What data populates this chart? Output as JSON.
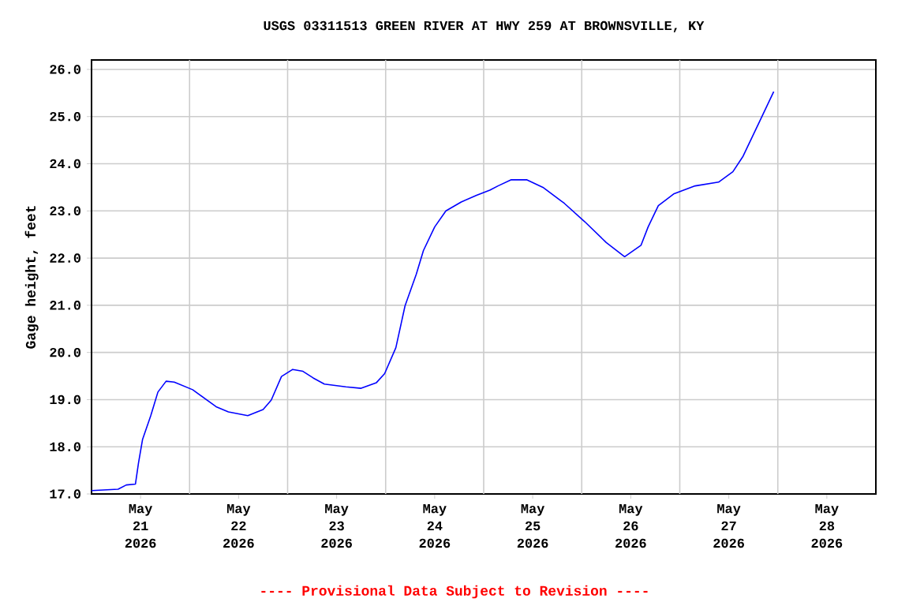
{
  "chart_data": {
    "type": "line",
    "title": "USGS 03311513 GREEN RIVER AT HWY 259 AT BROWNSVILLE, KY",
    "ylabel": "Gage height, feet",
    "annotations": [
      "---- Provisional Data Subject to Revision ----"
    ],
    "x": [
      "2026-05-21T00:00",
      "2026-05-21T06:30",
      "2026-05-21T08:30",
      "2026-05-21T10:45",
      "2026-05-21T11:30",
      "2026-05-21T12:30",
      "2026-05-21T14:30",
      "2026-05-21T16:15",
      "2026-05-21T18:15",
      "2026-05-21T20:15",
      "2026-05-22T00:45",
      "2026-05-22T06:30",
      "2026-05-22T09:30",
      "2026-05-22T14:15",
      "2026-05-22T18:00",
      "2026-05-22T20:00",
      "2026-05-22T22:30",
      "2026-05-23T01:15",
      "2026-05-23T03:45",
      "2026-05-23T06:15",
      "2026-05-23T09:00",
      "2026-05-23T14:15",
      "2026-05-23T18:00",
      "2026-05-23T21:45",
      "2026-05-23T23:45",
      "2026-05-24T02:30",
      "2026-05-24T04:45",
      "2026-05-24T07:30",
      "2026-05-24T09:15",
      "2026-05-24T12:00",
      "2026-05-24T14:45",
      "2026-05-24T18:30",
      "2026-05-24T22:15",
      "2026-05-25T01:30",
      "2026-05-25T03:30",
      "2026-05-25T06:45",
      "2026-05-25T10:30",
      "2026-05-25T14:30",
      "2026-05-25T19:45",
      "2026-05-26T00:45",
      "2026-05-26T06:00",
      "2026-05-26T10:30",
      "2026-05-26T14:30",
      "2026-05-26T16:15",
      "2026-05-26T18:45",
      "2026-05-26T22:30",
      "2026-05-27T03:45",
      "2026-05-27T09:30",
      "2026-05-27T13:00",
      "2026-05-27T15:30",
      "2026-05-27T19:30",
      "2026-05-27T23:00"
    ],
    "series": [
      {
        "color": "#0000ff",
        "values": [
          17.07,
          17.1,
          17.19,
          17.21,
          17.66,
          18.16,
          18.66,
          19.16,
          19.39,
          19.37,
          19.21,
          18.85,
          18.74,
          18.66,
          18.79,
          18.99,
          19.49,
          19.64,
          19.6,
          19.46,
          19.33,
          19.27,
          19.24,
          19.36,
          19.55,
          20.1,
          20.99,
          21.66,
          22.16,
          22.66,
          23.0,
          23.19,
          23.33,
          23.44,
          23.53,
          23.66,
          23.66,
          23.5,
          23.16,
          22.77,
          22.33,
          22.03,
          22.27,
          22.66,
          23.11,
          23.36,
          23.53,
          23.61,
          23.83,
          24.16,
          24.89,
          25.53
        ]
      }
    ],
    "xlim": [
      "2026-05-21T00:00",
      "2026-05-29T00:00"
    ],
    "xticks": [
      {
        "value": "2026-05-21T12:00",
        "label": "May 21 2026"
      },
      {
        "value": "2026-05-22T12:00",
        "label": "May 22 2026"
      },
      {
        "value": "2026-05-23T12:00",
        "label": "May 23 2026"
      },
      {
        "value": "2026-05-24T12:00",
        "label": "May 24 2026"
      },
      {
        "value": "2026-05-25T12:00",
        "label": "May 25 2026"
      },
      {
        "value": "2026-05-26T12:00",
        "label": "May 26 2026"
      },
      {
        "value": "2026-05-27T12:00",
        "label": "May 27 2026"
      },
      {
        "value": "2026-05-28T12:00",
        "label": "May 28 2026"
      },
      {
        "value": "2026-05-22T00:00",
        "label": null
      },
      {
        "value": "2026-05-23T00:00",
        "label": null
      },
      {
        "value": "2026-05-24T00:00",
        "label": null
      },
      {
        "value": "2026-05-25T00:00",
        "label": null
      },
      {
        "value": "2026-05-26T00:00",
        "label": null
      },
      {
        "value": "2026-05-27T00:00",
        "label": null
      },
      {
        "value": "2026-05-28T00:00",
        "label": null
      }
    ],
    "ylim": [
      17,
      26.2
    ],
    "yticks": [
      {
        "value": 17,
        "label": "17.0"
      },
      {
        "value": 18,
        "label": "18.0"
      },
      {
        "value": 19,
        "label": "19.0"
      },
      {
        "value": 20,
        "label": "20.0"
      },
      {
        "value": 21,
        "label": "21.0"
      },
      {
        "value": 22,
        "label": "22.0"
      },
      {
        "value": 23,
        "label": "23.0"
      },
      {
        "value": 24,
        "label": "24.0"
      },
      {
        "value": 25,
        "label": "25.0"
      },
      {
        "value": 26,
        "label": "26.0"
      }
    ],
    "grid": true,
    "marker": "none",
    "line_style": "solid"
  }
}
